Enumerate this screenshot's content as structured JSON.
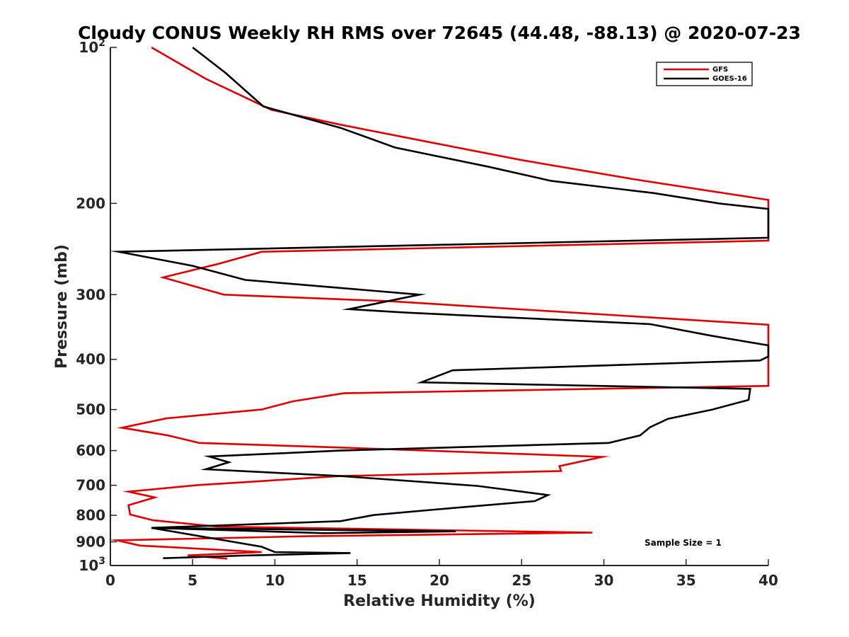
{
  "chart_data": {
    "type": "line",
    "title": "Cloudy CONUS Weekly RH RMS over 72645 (44.48, -88.13) @ 2020-07-23",
    "xlabel": "Relative Humidity (%)",
    "ylabel": "Pressure (mb)",
    "xlim": [
      0,
      40
    ],
    "ylim": [
      100,
      1000
    ],
    "y_scale": "log",
    "y_reversed": true,
    "grid": false,
    "legend_position": "top-right",
    "x_ticks": [
      0,
      5,
      10,
      15,
      20,
      25,
      30,
      35,
      40
    ],
    "x_tick_labels": [
      "0",
      "5",
      "10",
      "15",
      "20",
      "25",
      "30",
      "35",
      "40"
    ],
    "y_ticks": [
      {
        "value": 100,
        "base": "10",
        "exp": "2"
      },
      {
        "value": 200,
        "label": "200"
      },
      {
        "value": 300,
        "label": "300"
      },
      {
        "value": 400,
        "label": "400"
      },
      {
        "value": 500,
        "label": "500"
      },
      {
        "value": 600,
        "label": "600"
      },
      {
        "value": 700,
        "label": "700"
      },
      {
        "value": 800,
        "label": "800"
      },
      {
        "value": 900,
        "label": "900"
      },
      {
        "value": 1000,
        "base": "10",
        "exp": "3"
      }
    ],
    "annotation": "Sample Size = 1",
    "series": [
      {
        "name": "GFS",
        "color": "#e00000",
        "points": [
          [
            2.5,
            100
          ],
          [
            5.8,
            115
          ],
          [
            9.8,
            132
          ],
          [
            14,
            141
          ],
          [
            19.7,
            153
          ],
          [
            25,
            165
          ],
          [
            32,
            180
          ],
          [
            40,
            197
          ],
          [
            40,
            236
          ],
          [
            9.2,
            248
          ],
          [
            6.5,
            262
          ],
          [
            3.2,
            278
          ],
          [
            6.9,
            300
          ],
          [
            17,
            309
          ],
          [
            40,
            343
          ],
          [
            40,
            450
          ],
          [
            14.2,
            465
          ],
          [
            11.1,
            482
          ],
          [
            9.2,
            500
          ],
          [
            3.4,
            520
          ],
          [
            0.7,
            542
          ],
          [
            3.5,
            561
          ],
          [
            5.4,
            580
          ],
          [
            14,
            592
          ],
          [
            29.9,
            617
          ],
          [
            27.3,
            643
          ],
          [
            27.4,
            657
          ],
          [
            14,
            672
          ],
          [
            5.2,
            700
          ],
          [
            1.1,
            720
          ],
          [
            2.7,
            739
          ],
          [
            1.1,
            765
          ],
          [
            1.2,
            797
          ],
          [
            2.6,
            818
          ],
          [
            6.5,
            841
          ],
          [
            29.3,
            864
          ],
          [
            12,
            878
          ],
          [
            0.4,
            894
          ],
          [
            1.8,
            915
          ],
          [
            9.2,
            942
          ],
          [
            4.7,
            956
          ],
          [
            7.1,
            970
          ]
        ]
      },
      {
        "name": "GOES-16",
        "color": "#000000",
        "points": [
          [
            5,
            100
          ],
          [
            7,
            112
          ],
          [
            9.3,
            130
          ],
          [
            14,
            143
          ],
          [
            17.3,
            156
          ],
          [
            23,
            170
          ],
          [
            26.8,
            181
          ],
          [
            33,
            191
          ],
          [
            37,
            200
          ],
          [
            40,
            205
          ],
          [
            40,
            233
          ],
          [
            0.5,
            248
          ],
          [
            5,
            264
          ],
          [
            8.2,
            281
          ],
          [
            18.8,
            300
          ],
          [
            14.5,
            320
          ],
          [
            18,
            325
          ],
          [
            32.8,
            342
          ],
          [
            36.5,
            360
          ],
          [
            40,
            376
          ],
          [
            40,
            395
          ],
          [
            39.5,
            402
          ],
          [
            20.8,
            420
          ],
          [
            18.9,
            443
          ],
          [
            38.9,
            456
          ],
          [
            38.8,
            479
          ],
          [
            36.6,
            500
          ],
          [
            33.9,
            521
          ],
          [
            32.8,
            541
          ],
          [
            32.2,
            561
          ],
          [
            30.3,
            580
          ],
          [
            14,
            600
          ],
          [
            6,
            616
          ],
          [
            7.2,
            632
          ],
          [
            5.8,
            652
          ],
          [
            14,
            672
          ],
          [
            22.3,
            702
          ],
          [
            26.6,
            731
          ],
          [
            25.8,
            751
          ],
          [
            19.7,
            780
          ],
          [
            16,
            799
          ],
          [
            14,
            821
          ],
          [
            2.5,
            846
          ],
          [
            21,
            859
          ],
          [
            13,
            866
          ],
          [
            2.5,
            846
          ],
          [
            9.2,
            920
          ],
          [
            10,
            942
          ],
          [
            14.6,
            946
          ],
          [
            8,
            957
          ],
          [
            3.2,
            968
          ]
        ]
      }
    ]
  }
}
